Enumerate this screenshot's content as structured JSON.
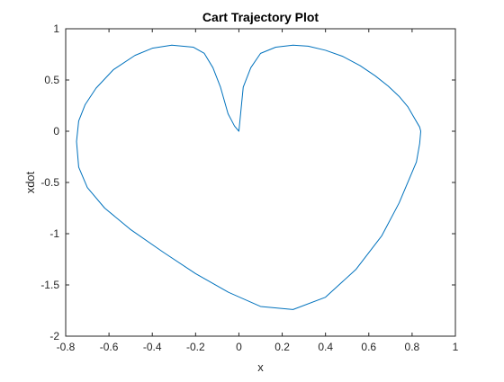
{
  "chart_data": {
    "type": "line",
    "title": "Cart Trajectory Plot",
    "xlabel": "x",
    "ylabel": "xdot",
    "xlim": [
      -0.8,
      1
    ],
    "ylim": [
      -2,
      1
    ],
    "grid": false,
    "x_ticks": [
      -0.8,
      -0.6,
      -0.4,
      -0.2,
      0,
      0.2,
      0.4,
      0.6,
      0.8,
      1
    ],
    "x_tick_labels": [
      "-0.8",
      "-0.6",
      "-0.4",
      "-0.2",
      "0",
      "0.2",
      "0.4",
      "0.6",
      "0.8",
      "1"
    ],
    "y_ticks": [
      -2,
      -1.5,
      -1,
      -0.5,
      0,
      0.5,
      1
    ],
    "y_tick_labels": [
      "-2",
      "-1.5",
      "-1",
      "-0.5",
      "0",
      "0.5",
      "1"
    ],
    "series": [
      {
        "color": "#0072bd",
        "x": [
          0,
          0.02,
          0.055,
          0.1,
          0.17,
          0.25,
          0.32,
          0.4,
          0.48,
          0.56,
          0.63,
          0.69,
          0.74,
          0.78,
          0.81,
          0.835,
          0.84,
          0.835,
          0.82,
          0.79,
          0.74,
          0.66,
          0.54,
          0.4,
          0.25,
          0.1,
          -0.05,
          -0.2,
          -0.35,
          -0.5,
          -0.62,
          -0.7,
          -0.74,
          -0.75,
          -0.74,
          -0.71,
          -0.66,
          -0.58,
          -0.48,
          -0.4,
          -0.31,
          -0.21,
          -0.16,
          -0.12,
          -0.085,
          -0.05,
          -0.02,
          0
        ],
        "y": [
          0,
          0.43,
          0.62,
          0.76,
          0.82,
          0.84,
          0.83,
          0.79,
          0.73,
          0.64,
          0.54,
          0.44,
          0.34,
          0.24,
          0.13,
          0.04,
          0,
          -0.12,
          -0.3,
          -0.45,
          -0.7,
          -1.02,
          -1.35,
          -1.62,
          -1.74,
          -1.71,
          -1.57,
          -1.39,
          -1.18,
          -0.96,
          -0.75,
          -0.55,
          -0.35,
          -0.1,
          0.1,
          0.26,
          0.42,
          0.6,
          0.74,
          0.81,
          0.84,
          0.82,
          0.76,
          0.62,
          0.43,
          0.17,
          0.05,
          0
        ]
      }
    ]
  }
}
